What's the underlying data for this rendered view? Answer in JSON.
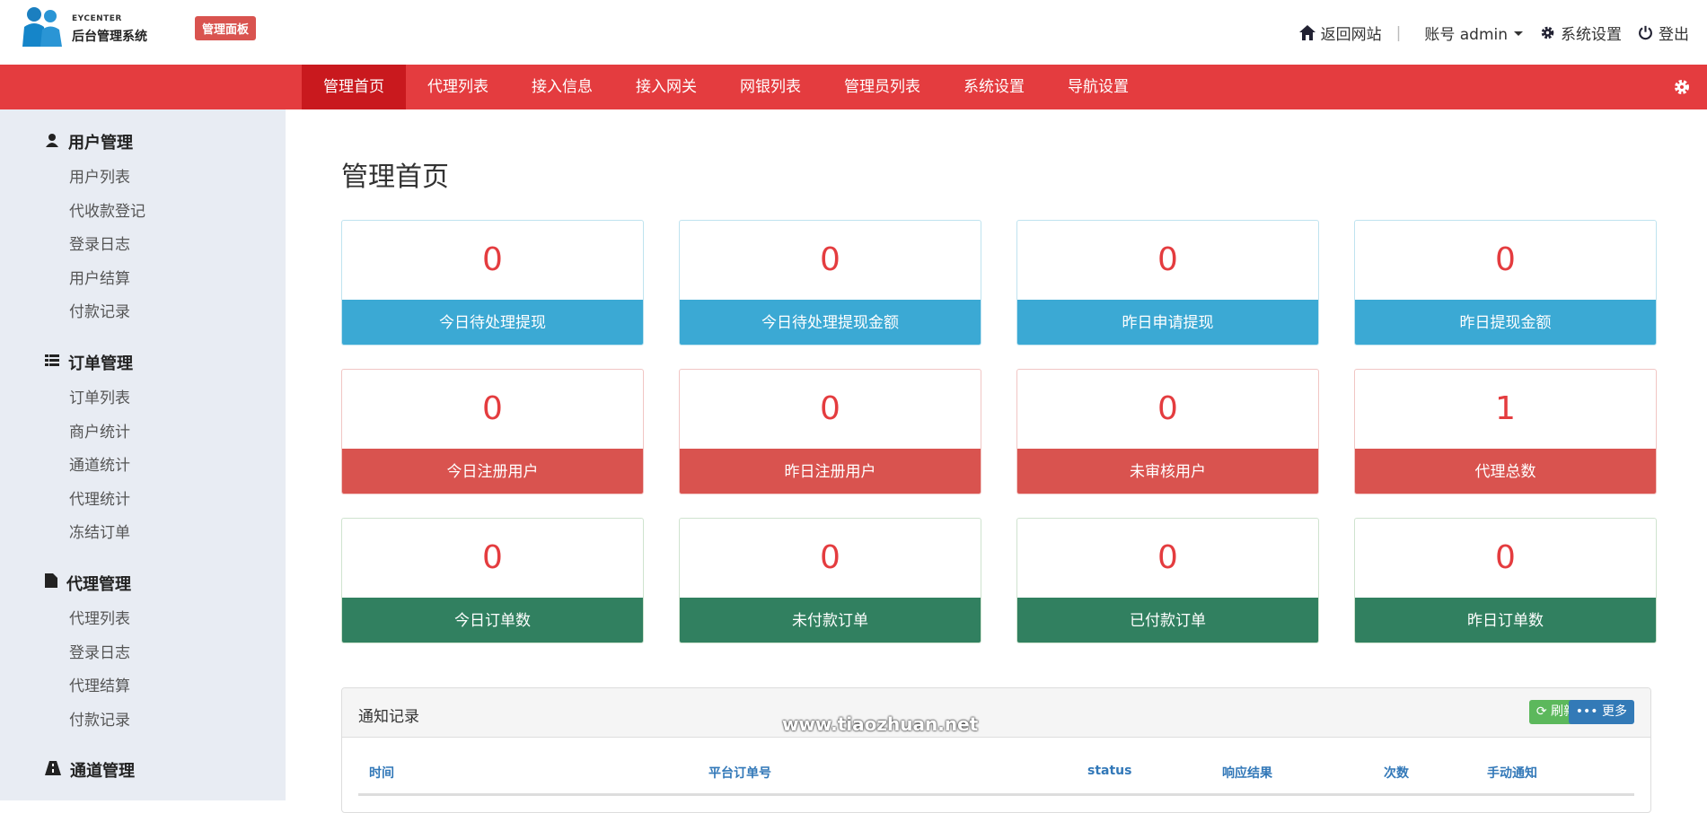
{
  "header": {
    "logo_en": "EYCENTER",
    "logo_cn": "后台管理系统",
    "badge": "管理面板",
    "links": [
      {
        "icon": "home-icon",
        "label": "返回网站"
      },
      {
        "icon": "caret-down-icon",
        "label": "账号 admin"
      },
      {
        "icon": "gear-icon",
        "label": "系统设置"
      },
      {
        "icon": "power-icon",
        "label": "登出"
      }
    ]
  },
  "nav": {
    "tabs": [
      "管理首页",
      "代理列表",
      "接入信息",
      "接入网关",
      "网银列表",
      "管理员列表",
      "系统设置",
      "导航设置"
    ],
    "active": 0
  },
  "sidebar": [
    {
      "title": "用户管理",
      "icon": "user-icon",
      "items": [
        "用户列表",
        "代收款登记",
        "登录日志",
        "用户结算",
        "付款记录"
      ]
    },
    {
      "title": "订单管理",
      "icon": "list-icon",
      "items": [
        "订单列表",
        "商户统计",
        "通道统计",
        "代理统计",
        "冻结订单"
      ]
    },
    {
      "title": "代理管理",
      "icon": "file-icon",
      "items": [
        "代理列表",
        "登录日志",
        "代理结算",
        "付款记录"
      ]
    },
    {
      "title": "通道管理",
      "icon": "road-icon",
      "items": []
    }
  ],
  "page_title": "管理首页",
  "colors": {
    "blue": "#3ba9d4",
    "red": "#d9534f",
    "green": "#318060",
    "nav": "#e43c3f"
  },
  "cards": [
    {
      "value": "0",
      "label": "今日待处理提现",
      "color": "blue"
    },
    {
      "value": "0",
      "label": "今日待处理提现金额",
      "color": "blue"
    },
    {
      "value": "0",
      "label": "昨日申请提现",
      "color": "blue"
    },
    {
      "value": "0",
      "label": "昨日提现金额",
      "color": "blue"
    },
    {
      "value": "0",
      "label": "今日注册用户",
      "color": "red"
    },
    {
      "value": "0",
      "label": "昨日注册用户",
      "color": "red"
    },
    {
      "value": "0",
      "label": "未审核用户",
      "color": "red"
    },
    {
      "value": "1",
      "label": "代理总数",
      "color": "red"
    },
    {
      "value": "0",
      "label": "今日订单数",
      "color": "green"
    },
    {
      "value": "0",
      "label": "未付款订单",
      "color": "green"
    },
    {
      "value": "0",
      "label": "已付款订单",
      "color": "green"
    },
    {
      "value": "0",
      "label": "昨日订单数",
      "color": "green"
    }
  ],
  "panel": {
    "title": "通知记录",
    "refresh": "刷新",
    "more": "更多",
    "watermark": "www.tiaozhuan.net",
    "columns": [
      "时间",
      "平台订单号",
      "status",
      "响应结果",
      "次数",
      "手动通知"
    ]
  }
}
